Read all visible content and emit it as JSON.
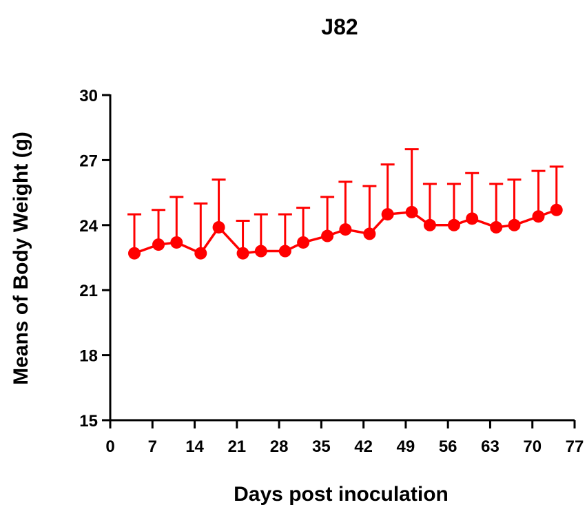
{
  "chart_data": {
    "type": "line",
    "title": "J82",
    "xlabel": "Days post inoculation",
    "ylabel": "Means of Body Weight (g)",
    "xlim": [
      0,
      77
    ],
    "ylim": [
      15,
      30
    ],
    "xticks": [
      0,
      7,
      14,
      21,
      28,
      35,
      42,
      49,
      56,
      63,
      70,
      77
    ],
    "yticks": [
      15,
      18,
      21,
      24,
      27,
      30
    ],
    "grid": false,
    "series": [
      {
        "color": "#ff0000",
        "x": [
          4,
          8,
          11,
          15,
          18,
          22,
          25,
          29,
          32,
          36,
          39,
          43,
          46,
          50,
          53,
          57,
          60,
          64,
          67,
          71,
          74
        ],
        "y": [
          22.7,
          23.1,
          23.2,
          22.7,
          23.9,
          22.7,
          22.8,
          22.8,
          23.2,
          23.5,
          23.8,
          23.6,
          24.5,
          24.6,
          24.0,
          24.0,
          24.3,
          23.9,
          24.0,
          24.4,
          24.7
        ],
        "error": [
          1.8,
          1.6,
          2.1,
          2.3,
          2.2,
          1.5,
          1.7,
          1.7,
          1.6,
          1.8,
          2.2,
          2.2,
          2.3,
          2.9,
          1.9,
          1.9,
          2.1,
          2.0,
          2.1,
          2.1,
          2.0
        ]
      }
    ]
  }
}
